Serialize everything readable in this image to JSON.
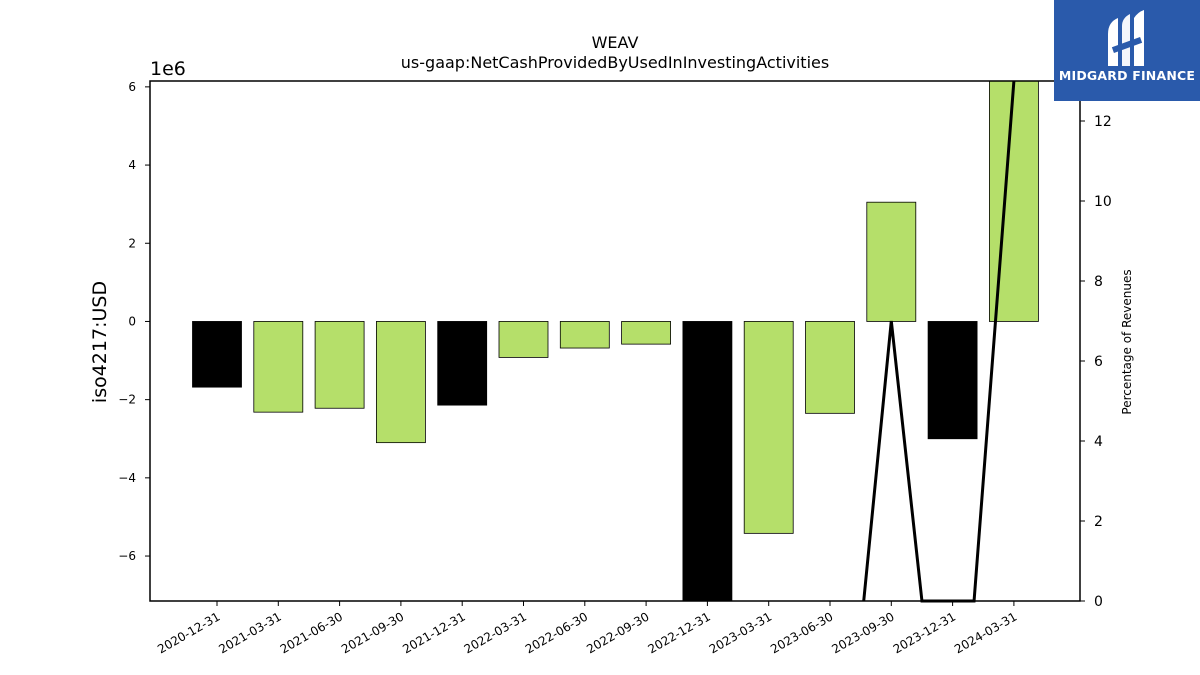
{
  "brand": {
    "name": "MIDGARD FINANCE",
    "bg_color": "#2a5aab"
  },
  "chart_data": {
    "type": "bar",
    "title": "WEAV",
    "subtitle": "us-gaap:NetCashProvidedByUsedInInvestingActivities",
    "ylabel": "iso4217:USD",
    "y_multiplier": "1e6",
    "y2label": "Percentage of Revenues",
    "ylim": [
      -7.15,
      6.15
    ],
    "y2lim": [
      0,
      13
    ],
    "yticks": [
      -6,
      -4,
      -2,
      0,
      2,
      4,
      6
    ],
    "ytick_labels": [
      "−6",
      "−4",
      "−2",
      "0",
      "2",
      "4",
      "6"
    ],
    "y2ticks": [
      0,
      2,
      4,
      6,
      8,
      10,
      12
    ],
    "y2tick_labels": [
      "0",
      "2",
      "4",
      "6",
      "8",
      "10",
      "12"
    ],
    "grid": false,
    "categories": [
      "2020-12-31",
      "2021-03-31",
      "2021-06-30",
      "2021-09-30",
      "2021-12-31",
      "2022-03-31",
      "2022-06-30",
      "2022-09-30",
      "2022-12-31",
      "2023-03-31",
      "2023-06-30",
      "2023-09-30",
      "2023-12-31",
      "2024-03-31"
    ],
    "values": [
      -1.68,
      -2.32,
      -2.22,
      -3.1,
      -2.14,
      -0.92,
      -0.68,
      -0.58,
      -7.15,
      -5.42,
      -2.35,
      3.05,
      -3.0,
      6.15
    ],
    "bar_colors": [
      "#000000",
      "#b5df6a",
      "#b5df6a",
      "#b5df6a",
      "#000000",
      "#b5df6a",
      "#b5df6a",
      "#b5df6a",
      "#000000",
      "#b5df6a",
      "#b5df6a",
      "#b5df6a",
      "#000000",
      "#b5df6a"
    ],
    "line_series": {
      "name": "",
      "axis": "y2",
      "color": "#000000",
      "points": [
        {
          "x": 10.55,
          "y": 0
        },
        {
          "x": 11,
          "y": 7.0
        },
        {
          "x": 11.5,
          "y": 0
        },
        {
          "x": 12.35,
          "y": 0
        },
        {
          "x": 13,
          "y": 13
        }
      ]
    }
  }
}
